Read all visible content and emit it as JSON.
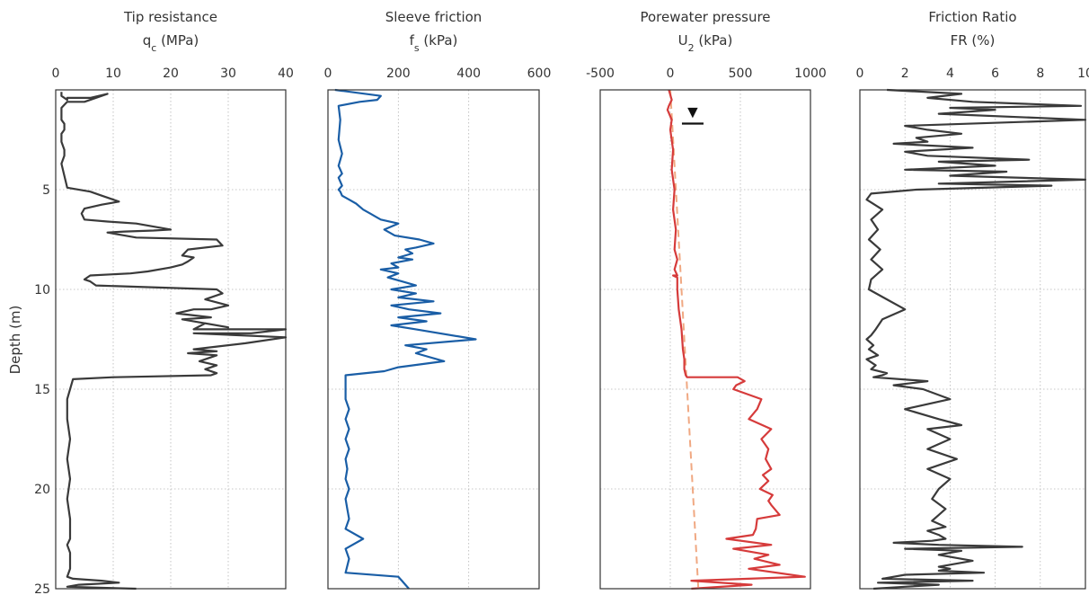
{
  "chart_data": [
    {
      "type": "line",
      "title": "Tip resistance",
      "subtitle": "q",
      "subtitle_sub": "c",
      "subtitle_unit": " (MPa)",
      "xlim": [
        0,
        40
      ],
      "xticks": [
        0,
        10,
        20,
        30,
        40
      ],
      "ylim": [
        0,
        25
      ],
      "color": "#3a3a3a",
      "series": [
        {
          "x": [
            1,
            1,
            2,
            2,
            6,
            9,
            5,
            2,
            1,
            1,
            1.5,
            1.5,
            1,
            1,
            1.5,
            1.5,
            1,
            1.5,
            2,
            6,
            8,
            10,
            11,
            8,
            5,
            4.5,
            5,
            9,
            14,
            18,
            20,
            17,
            12,
            9,
            12,
            14,
            28,
            29,
            23,
            22,
            24,
            23,
            22,
            20,
            16,
            13,
            6,
            5,
            6,
            7,
            28,
            29,
            26,
            30,
            27,
            24,
            21,
            27,
            22,
            30,
            26,
            24,
            35,
            40,
            34,
            24,
            40,
            33,
            27,
            24,
            28,
            23,
            28,
            25,
            28,
            26,
            28,
            27,
            10,
            3,
            2,
            2,
            2.5,
            2,
            2.5,
            2,
            2.5,
            2.5,
            2,
            2.5,
            2.5,
            2,
            3,
            8,
            11,
            4,
            2,
            14
          ],
          "y": [
            0.1,
            0.3,
            0.5,
            0.4,
            0.4,
            0.2,
            0.6,
            0.6,
            0.9,
            1.5,
            1.7,
            2.0,
            2.2,
            2.6,
            3.0,
            3.3,
            3.7,
            4.3,
            4.9,
            5.1,
            5.3,
            5.5,
            5.6,
            5.75,
            5.95,
            6.2,
            6.5,
            6.6,
            6.7,
            6.9,
            7.0,
            7.05,
            7.1,
            7.15,
            7.3,
            7.4,
            7.5,
            7.8,
            8.0,
            8.3,
            8.4,
            8.6,
            8.75,
            8.9,
            9.1,
            9.2,
            9.3,
            9.5,
            9.6,
            9.8,
            10.0,
            10.2,
            10.5,
            10.8,
            11.0,
            11.0,
            11.2,
            11.4,
            11.5,
            11.9,
            11.7,
            12.0,
            12.0,
            12.0,
            12.2,
            12.2,
            12.4,
            12.7,
            12.9,
            13.0,
            13.1,
            13.2,
            13.3,
            13.6,
            13.8,
            14.0,
            14.2,
            14.3,
            14.4,
            14.5,
            15.5,
            16.5,
            17.5,
            18.5,
            19.5,
            20.5,
            21.5,
            22.5,
            22.8,
            23.2,
            24.0,
            24.4,
            24.5,
            24.6,
            24.7,
            24.8,
            24.9,
            25.0
          ]
        }
      ]
    },
    {
      "type": "line",
      "title": "Sleeve friction",
      "subtitle": "f",
      "subtitle_sub": "s",
      "subtitle_unit": " (kPa)",
      "xlim": [
        0,
        600
      ],
      "xticks": [
        0,
        200,
        400,
        600
      ],
      "ylim": [
        0,
        25
      ],
      "color": "#1a5ea6",
      "series": [
        {
          "x": [
            20,
            150,
            140,
            90,
            30,
            35,
            30,
            40,
            30,
            40,
            30,
            40,
            30,
            35,
            40,
            60,
            80,
            100,
            120,
            140,
            150,
            200,
            160,
            190,
            260,
            300,
            250,
            220,
            240,
            200,
            240,
            180,
            200,
            150,
            200,
            170,
            210,
            250,
            180,
            250,
            200,
            300,
            180,
            230,
            320,
            200,
            280,
            180,
            250,
            420,
            220,
            280,
            250,
            330,
            200,
            160,
            50,
            50,
            50,
            60,
            50,
            60,
            50,
            60,
            50,
            55,
            50,
            60,
            50,
            55,
            60,
            50,
            100,
            50,
            60,
            50,
            200,
            210,
            220,
            230
          ],
          "y": [
            0.0,
            0.3,
            0.5,
            0.6,
            0.8,
            1.5,
            2.5,
            3.2,
            3.8,
            4.2,
            4.4,
            4.8,
            5.0,
            5.1,
            5.3,
            5.5,
            5.7,
            6.0,
            6.2,
            6.4,
            6.5,
            6.7,
            7.0,
            7.3,
            7.5,
            7.7,
            7.9,
            8.0,
            8.2,
            8.4,
            8.5,
            8.7,
            8.9,
            9.0,
            9.2,
            9.4,
            9.6,
            9.8,
            10.0,
            10.2,
            10.4,
            10.6,
            10.8,
            11.0,
            11.2,
            11.4,
            11.6,
            11.8,
            12.0,
            12.5,
            12.8,
            13.0,
            13.2,
            13.6,
            13.9,
            14.1,
            14.3,
            15.0,
            15.5,
            16.0,
            16.5,
            17.0,
            17.5,
            18.0,
            18.5,
            19.0,
            19.5,
            20.0,
            20.5,
            21.0,
            21.5,
            22.0,
            22.5,
            23.0,
            23.5,
            24.2,
            24.4,
            24.6,
            24.8,
            25.0
          ]
        }
      ]
    },
    {
      "type": "line",
      "title": "Porewater pressure",
      "subtitle": "U",
      "subtitle_sub": "2",
      "subtitle_unit": " (kPa)",
      "xlim": [
        -500,
        1000
      ],
      "xticks": [
        -500,
        0,
        500,
        1000
      ],
      "ylim": [
        0,
        25
      ],
      "color": "#d63b3b",
      "marker": "▼",
      "marker_x": 160,
      "marker_y": 1.6,
      "hydrostatic": {
        "x": [
          0,
          200
        ],
        "y": [
          0,
          25
        ]
      },
      "series": [
        {
          "x": [
            -10,
            10,
            -10,
            -20,
            10,
            0,
            20,
            10,
            30,
            20,
            40,
            30,
            50,
            30,
            50,
            20,
            50,
            50,
            60,
            80,
            90,
            100,
            100,
            110,
            120,
            480,
            530,
            470,
            450,
            650,
            620,
            560,
            720,
            650,
            700,
            680,
            720,
            660,
            700,
            640,
            730,
            700,
            720,
            780,
            620,
            610,
            590,
            400,
            720,
            450,
            700,
            600,
            780,
            560,
            960,
            150,
            580,
            150
          ],
          "y": [
            0.0,
            0.5,
            0.8,
            1.0,
            1.5,
            2.0,
            3.0,
            4.0,
            5.0,
            6.0,
            7.0,
            8.0,
            8.5,
            9.0,
            9.3,
            9.3,
            9.4,
            10.0,
            11.0,
            12.0,
            13.0,
            13.5,
            14.0,
            14.3,
            14.4,
            14.4,
            14.6,
            14.8,
            15.0,
            15.5,
            16.0,
            16.5,
            17.0,
            17.5,
            18.0,
            18.5,
            19.0,
            19.3,
            19.6,
            20.0,
            20.3,
            20.6,
            20.8,
            21.3,
            21.5,
            22.0,
            22.3,
            22.5,
            22.8,
            23.0,
            23.3,
            23.5,
            23.8,
            24.0,
            24.4,
            24.6,
            24.8,
            25.0
          ]
        }
      ]
    },
    {
      "type": "line",
      "title": "Friction Ratio",
      "subtitle": "FR (%)",
      "subtitle_sub": "",
      "subtitle_unit": "",
      "xlim": [
        0,
        10
      ],
      "xticks": [
        0,
        2,
        4,
        6,
        8,
        10
      ],
      "ylim": [
        0,
        25
      ],
      "color": "#3a3a3a",
      "series": [
        {
          "x": [
            1.2,
            4.5,
            3.0,
            5.0,
            9.8,
            4.0,
            6.0,
            3.5,
            10,
            2.0,
            3.0,
            4.5,
            2.5,
            3.0,
            1.5,
            5.0,
            2.0,
            3.0,
            7.5,
            3.5,
            6.0,
            2.0,
            6.5,
            4.0,
            10,
            3.5,
            8.5,
            2.5,
            0.5,
            0.3,
            1.0,
            0.5,
            0.8,
            0.4,
            0.9,
            0.5,
            1.0,
            0.8,
            0.5,
            0.4,
            1.2,
            2.0,
            1.0,
            0.7,
            0.5,
            0.3,
            0.6,
            0.4,
            0.8,
            0.3,
            0.7,
            0.5,
            1.2,
            1.0,
            0.6,
            3.0,
            1.5,
            2.8,
            4.0,
            2.0,
            3.5,
            4.5,
            3.0,
            4.0,
            3.0,
            4.3,
            3.0,
            4.0,
            3.5,
            3.2,
            3.8,
            3.5,
            3.2,
            3.8,
            3.0,
            3.5,
            3.8,
            3.2,
            1.5,
            3.5,
            7.2,
            2.0,
            4.5,
            3.5,
            5.0,
            3.5,
            4.0,
            3.5,
            5.5,
            2.0,
            1.0,
            5.0,
            0.8,
            3.5,
            2.0,
            0.6
          ],
          "y": [
            0.0,
            0.2,
            0.4,
            0.6,
            0.8,
            0.9,
            1.0,
            1.2,
            1.5,
            1.8,
            2.0,
            2.2,
            2.4,
            2.6,
            2.7,
            2.9,
            3.1,
            3.3,
            3.5,
            3.6,
            3.8,
            4.0,
            4.1,
            4.3,
            4.5,
            4.7,
            4.8,
            5.0,
            5.2,
            5.5,
            6.0,
            6.5,
            7.0,
            7.5,
            8.0,
            8.5,
            9.0,
            9.2,
            9.5,
            10.0,
            10.5,
            11.0,
            11.5,
            12.0,
            12.3,
            12.5,
            12.8,
            13.0,
            13.3,
            13.5,
            13.8,
            14.0,
            14.2,
            14.3,
            14.4,
            14.6,
            14.8,
            15.0,
            15.5,
            16.0,
            16.5,
            16.8,
            17.0,
            17.5,
            18.0,
            18.5,
            19.0,
            19.5,
            20.0,
            20.5,
            21.0,
            21.3,
            21.6,
            21.9,
            22.1,
            22.3,
            22.5,
            22.6,
            22.7,
            22.8,
            22.9,
            23.0,
            23.1,
            23.3,
            23.6,
            23.9,
            24.0,
            24.1,
            24.2,
            24.3,
            24.5,
            24.6,
            24.7,
            24.8,
            24.9,
            25.0
          ]
        }
      ]
    }
  ],
  "y_axis": {
    "label": "Depth (m)",
    "ticks": [
      5,
      10,
      15,
      20,
      25
    ]
  }
}
